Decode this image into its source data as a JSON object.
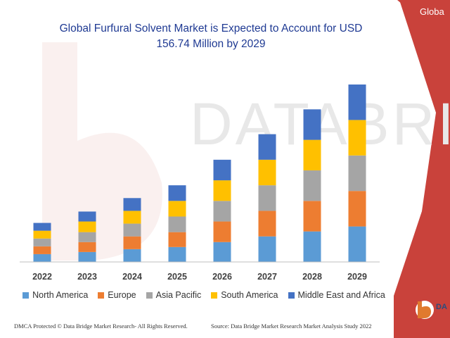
{
  "title_line1": "Global Furfural Solvent Market is Expected to Account for USD",
  "title_line2": "156.74 Million by 2029",
  "corner_label": "Globa",
  "watermark": "DATABRIDGE",
  "logo_text": "DA",
  "footer_left": "DMCA Protected © Data Bridge Market Research- All Rights Reserved.",
  "footer_right": "Source: Data Bridge Market Research Market Analysis Study 2022",
  "colors": {
    "title": "#1f3a93",
    "red_band": "#c9423b",
    "axis": "#bfbfbf"
  },
  "chart_data": {
    "type": "bar",
    "stacked": true,
    "categories": [
      "2022",
      "2023",
      "2024",
      "2025",
      "2026",
      "2027",
      "2028",
      "2029"
    ],
    "series": [
      {
        "name": "North America",
        "color": "#5b9bd5",
        "values": [
          11,
          14,
          18,
          21,
          28,
          36,
          43,
          50
        ]
      },
      {
        "name": "Europe",
        "color": "#ed7d31",
        "values": [
          11,
          14,
          18,
          21,
          29,
          36,
          43,
          50
        ]
      },
      {
        "name": "Asia Pacific",
        "color": "#a5a5a5",
        "values": [
          11,
          14,
          18,
          22,
          29,
          36,
          43,
          50
        ]
      },
      {
        "name": "South America",
        "color": "#ffc000",
        "values": [
          11,
          15,
          18,
          22,
          29,
          36,
          43,
          50
        ]
      },
      {
        "name": "Middle East and Africa",
        "color": "#4472c4",
        "values": [
          11,
          14,
          18,
          22,
          29,
          36,
          43,
          50
        ]
      }
    ],
    "ylim": [
      0,
      250
    ],
    "grid": false,
    "legend": "bottom"
  }
}
